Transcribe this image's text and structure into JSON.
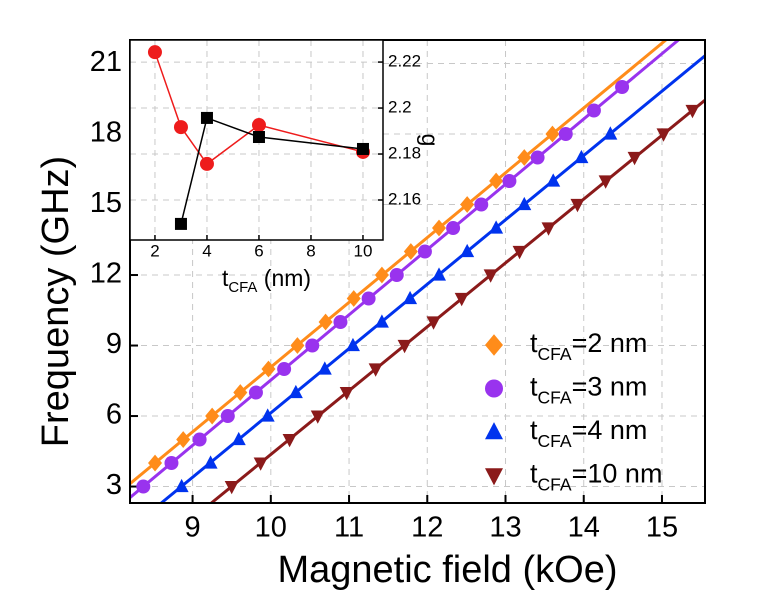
{
  "chart_data": [
    {
      "type": "scatter",
      "xlabel": "Magnetic field (kOe)",
      "ylabel": "Frequency (GHz)",
      "xlim": [
        8.2,
        15.55
      ],
      "ylim": [
        2.3,
        22
      ],
      "xticks": [
        9,
        10,
        11,
        12,
        13,
        14,
        15
      ],
      "yticks": [
        3,
        6,
        9,
        12,
        15,
        18,
        21
      ],
      "grid": true,
      "legend": "lower right",
      "series": [
        {
          "name": "tCFA=2 nm",
          "color": "#ff8c1a",
          "marker": "diamond",
          "x": [
            8.52,
            8.88,
            9.25,
            9.61,
            9.97,
            10.34,
            10.7,
            11.06,
            11.42,
            11.79,
            12.15,
            12.51,
            12.88,
            13.24,
            13.6
          ],
          "values": [
            4,
            5,
            6,
            7,
            8,
            9,
            10,
            11,
            12,
            13,
            14,
            15,
            16,
            17,
            18
          ],
          "fit_x": [
            8.2,
            15.05
          ],
          "fit_y": [
            3.12,
            22
          ]
        },
        {
          "name": "tCFA=3 nm",
          "color": "#9933ee",
          "marker": "circle",
          "x": [
            8.37,
            8.73,
            9.09,
            9.45,
            9.81,
            10.17,
            10.53,
            10.89,
            11.25,
            11.61,
            11.97,
            12.33,
            12.69,
            13.05,
            13.41,
            13.77,
            14.13,
            14.49
          ],
          "values": [
            3,
            4,
            5,
            6,
            7,
            8,
            9,
            10,
            11,
            12,
            13,
            14,
            15,
            16,
            17,
            18,
            19,
            20
          ],
          "fit_x": [
            8.2,
            15.21
          ],
          "fit_y": [
            2.53,
            22
          ]
        },
        {
          "name": "tCFA=4 nm",
          "color": "#0033ee",
          "marker": "triangle-up",
          "x": [
            8.86,
            9.23,
            9.59,
            9.96,
            10.32,
            10.69,
            11.05,
            11.42,
            11.78,
            12.15,
            12.51,
            12.88,
            13.24,
            13.61,
            13.97,
            14.34
          ],
          "values": [
            3,
            4,
            5,
            6,
            7,
            8,
            9,
            10,
            11,
            12,
            13,
            14,
            15,
            16,
            17,
            18
          ],
          "fit_x": [
            8.6,
            15.55
          ],
          "fit_y": [
            2.3,
            21.33
          ]
        },
        {
          "name": "tCFA=10 nm",
          "color": "#8b1a1a",
          "marker": "triangle-down",
          "x": [
            9.5,
            9.87,
            10.24,
            10.6,
            10.97,
            11.34,
            11.71,
            12.08,
            12.44,
            12.81,
            13.18,
            13.55,
            13.92,
            14.28,
            14.65,
            15.02,
            15.39
          ],
          "values": [
            3,
            4,
            5,
            6,
            7,
            8,
            9,
            10,
            11,
            12,
            13,
            14,
            15,
            16,
            17,
            18,
            19
          ],
          "fit_x": [
            9.24,
            15.55
          ],
          "fit_y": [
            2.3,
            19.44
          ]
        }
      ]
    },
    {
      "type": "line",
      "xlabel": "tCFA (nm)",
      "y2label": "g",
      "xlim": [
        1.04,
        10.77
      ],
      "y2lim": [
        2.1426,
        2.2296
      ],
      "xticks": [
        2,
        4,
        6,
        8,
        10
      ],
      "y2ticks": [
        2.16,
        2.18,
        2.2,
        2.22
      ],
      "grid": true,
      "series": [
        {
          "color": "#ee1c1c",
          "marker": "circle",
          "axis": "y2",
          "x": [
            2,
            3,
            4,
            6,
            10
          ],
          "values": [
            2.2243,
            2.1917,
            2.1757,
            2.1926,
            2.1809
          ]
        },
        {
          "color": "#000000",
          "marker": "square",
          "axis": "y2",
          "x": [
            3,
            4,
            6,
            10
          ],
          "values": [
            2.1496,
            2.1957,
            2.1874,
            2.1822
          ]
        }
      ]
    }
  ]
}
